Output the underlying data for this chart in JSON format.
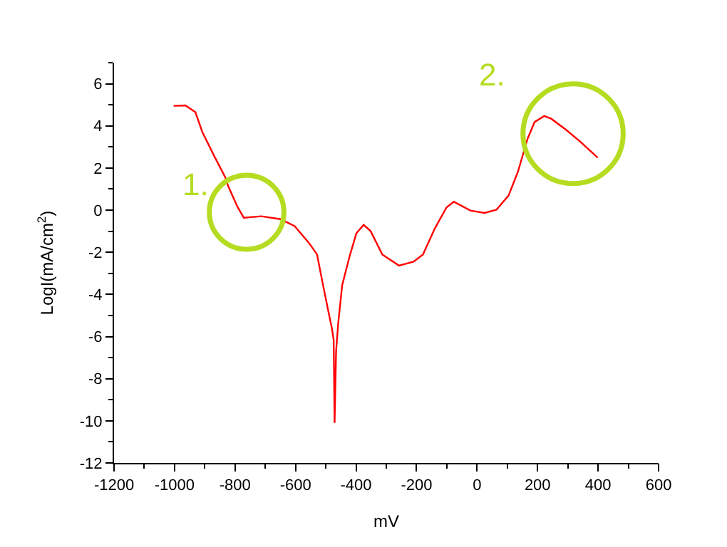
{
  "chart_data": {
    "type": "line",
    "xlabel": "mV",
    "ylabel": "LogI(mA/cm$^{2}$)",
    "xlim": [
      -1200,
      600
    ],
    "xticks": [
      -1200,
      -1000,
      -800,
      -600,
      -400,
      -200,
      0,
      200,
      400,
      600
    ],
    "ylim": [
      -12,
      7
    ],
    "yticks": [
      -12,
      -10,
      -8,
      -6,
      -4,
      -2,
      0,
      2,
      4,
      6
    ],
    "marker": "none",
    "line_style": "solid",
    "x": [
      -1003,
      -964,
      -931,
      -908,
      -870,
      -832,
      -823,
      -791,
      -771,
      -713,
      -650,
      -603,
      -556,
      -529,
      -509,
      -493,
      -480,
      -474,
      -471,
      -466,
      -459,
      -446,
      -422,
      -399,
      -375,
      -352,
      -313,
      -258,
      -210,
      -179,
      -140,
      -101,
      -77,
      -22,
      25,
      64,
      104,
      135,
      167,
      190,
      222,
      245,
      292,
      339,
      399
    ],
    "series": [
      {
        "color": "#ff0000",
        "values": [
          4.95,
          4.97,
          4.65,
          3.7,
          2.6,
          1.55,
          1.15,
          0.13,
          -0.36,
          -0.29,
          -0.43,
          -0.76,
          -1.55,
          -2.1,
          -3.57,
          -4.7,
          -5.6,
          -6.16,
          -10.1,
          -6.7,
          -5.37,
          -3.57,
          -2.22,
          -1.1,
          -0.7,
          -0.99,
          -2.11,
          -2.63,
          -2.45,
          -2.11,
          -0.88,
          0.13,
          0.4,
          -0.02,
          -0.13,
          0.02,
          0.69,
          1.82,
          3.39,
          4.18,
          4.47,
          4.34,
          3.84,
          3.28,
          2.49
        ]
      }
    ],
    "annotations": [
      "1.",
      "2."
    ]
  }
}
